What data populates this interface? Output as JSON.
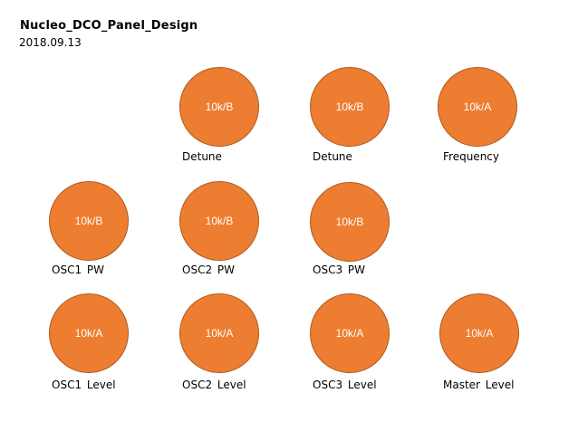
{
  "header": {
    "title": "Nucleo_DCO_Panel_Design",
    "date": "2018.09.13"
  },
  "colors": {
    "knob_fill": "#ed7d31",
    "knob_border": "#ae5a21",
    "knob_text": "#ffffff"
  },
  "knobs": [
    {
      "value": "10k/B",
      "label": "Detune"
    },
    {
      "value": "10k/B",
      "label": "Detune"
    },
    {
      "value": "10k/A",
      "label": "Frequency"
    },
    {
      "value": "10k/B",
      "label": "OSC1  PW"
    },
    {
      "value": "10k/B",
      "label": "OSC2  PW"
    },
    {
      "value": "10k/B",
      "label": "OSC3  PW"
    },
    {
      "value": "10k/A",
      "label": "OSC1  Level"
    },
    {
      "value": "10k/A",
      "label": "OSC2  Level"
    },
    {
      "value": "10k/A",
      "label": "OSC3  Level"
    },
    {
      "value": "10k/A",
      "label": "Master Level"
    }
  ]
}
